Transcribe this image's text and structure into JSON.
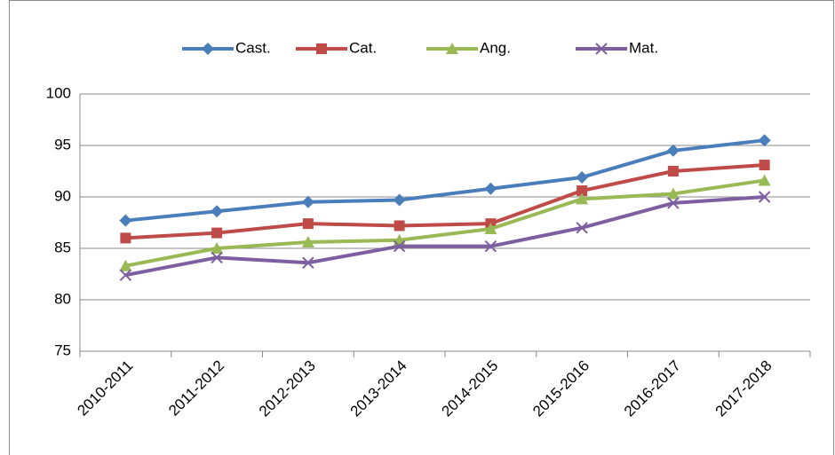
{
  "chart_data": {
    "type": "line",
    "categories": [
      "2010-2011",
      "2011-2012",
      "2012-2013",
      "2013-2014",
      "2014-2015",
      "2015-2016",
      "2016-2017",
      "2017-2018"
    ],
    "series": [
      {
        "name": "Cast.",
        "color": "#4a7ebb",
        "marker": "diamond",
        "values": [
          87.7,
          88.6,
          89.5,
          89.7,
          90.8,
          91.9,
          94.5,
          95.5
        ]
      },
      {
        "name": "Cat.",
        "color": "#be4b48",
        "marker": "square",
        "values": [
          86.0,
          86.5,
          87.4,
          87.2,
          87.4,
          90.6,
          92.5,
          93.1
        ]
      },
      {
        "name": "Ang.",
        "color": "#98b954",
        "marker": "triangle",
        "values": [
          83.3,
          85.0,
          85.6,
          85.8,
          86.9,
          89.8,
          90.3,
          91.6
        ]
      },
      {
        "name": "Mat.",
        "color": "#7d5fa0",
        "marker": "x",
        "values": [
          82.4,
          84.1,
          83.6,
          85.2,
          85.2,
          87.0,
          89.4,
          90.0
        ]
      }
    ],
    "ylim": [
      75,
      100
    ],
    "yticks": [
      75,
      80,
      85,
      90,
      95,
      100
    ],
    "grid": true,
    "legend": "top"
  }
}
